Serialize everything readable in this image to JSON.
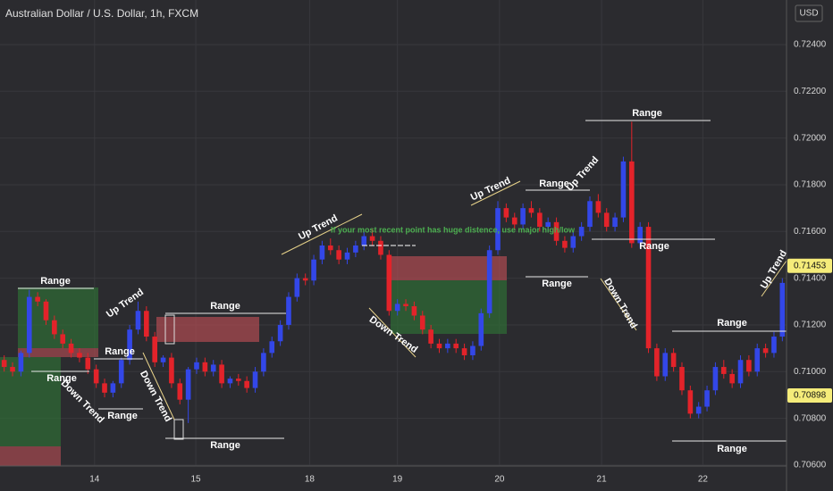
{
  "chart_data": {
    "type": "candlestick",
    "title": "Australian Dollar / U.S. Dollar, 1h, FXCM",
    "currency": "USD",
    "note": "If your most recent point has huge distence, use major high/low",
    "annotations": [
      "Range",
      "Up Trend",
      "Range",
      "Range",
      "Down Trend",
      "Range",
      "Down Trend",
      "Range",
      "Range",
      "Up Trend",
      "Down Trend",
      "Up Trend",
      "Range",
      "Up Trend",
      "Range",
      "Range",
      "Range",
      "Down Trend",
      "Range",
      "Range",
      "Up Trend"
    ],
    "up_color": "#3347e8",
    "down_color": "#e3232a",
    "ylim": [
      0.70596,
      0.72591
    ],
    "yticks": [
      {
        "value": 0.706,
        "label": "0.70600"
      },
      {
        "value": 0.708,
        "label": "0.70800"
      },
      {
        "value": 0.71,
        "label": "0.71000"
      },
      {
        "value": 0.712,
        "label": "0.71200"
      },
      {
        "value": 0.714,
        "label": "0.71400"
      },
      {
        "value": 0.716,
        "label": "0.71600"
      },
      {
        "value": 0.718,
        "label": "0.71800"
      },
      {
        "value": 0.72,
        "label": "0.72000"
      },
      {
        "value": 0.722,
        "label": "0.72200"
      },
      {
        "value": 0.724,
        "label": "0.72400"
      }
    ],
    "xlim": [
      -0.5,
      93.5
    ],
    "xticks": [
      {
        "value": 10.8,
        "label": "14"
      },
      {
        "value": 22.9,
        "label": "15"
      },
      {
        "value": 36.5,
        "label": "18"
      },
      {
        "value": 47.0,
        "label": "19"
      },
      {
        "value": 59.2,
        "label": "20"
      },
      {
        "value": 71.4,
        "label": "21"
      },
      {
        "value": 83.5,
        "label": "22"
      }
    ],
    "price_marks": [
      0.71453,
      0.70898
    ],
    "grid": true,
    "open": [
      0.7105,
      0.7102,
      0.71,
      0.7108,
      0.7132,
      0.713,
      0.7122,
      0.7116,
      0.7112,
      0.7108,
      0.7106,
      0.7101,
      0.7095,
      0.7091,
      0.7095,
      0.7105,
      0.7118,
      0.7126,
      0.7115,
      0.7104,
      0.7106,
      0.7095,
      0.7088,
      0.7101,
      0.7104,
      0.71,
      0.7103,
      0.7095,
      0.7097,
      0.7096,
      0.7093,
      0.71,
      0.7108,
      0.7113,
      0.712,
      0.7132,
      0.714,
      0.7139,
      0.7148,
      0.7154,
      0.7152,
      0.7148,
      0.7151,
      0.7154,
      0.7158,
      0.7156,
      0.715,
      0.7126,
      0.7129,
      0.7128,
      0.7124,
      0.7118,
      0.7112,
      0.711,
      0.7112,
      0.711,
      0.7107,
      0.7111,
      0.7125,
      0.7152,
      0.717,
      0.7166,
      0.7163,
      0.717,
      0.7168,
      0.7162,
      0.7164,
      0.7156,
      0.7153,
      0.7158,
      0.7162,
      0.7173,
      0.7168,
      0.7162,
      0.7166,
      0.719,
      0.7155,
      0.7162,
      0.711,
      0.7098,
      0.7108,
      0.7102,
      0.7092,
      0.7082,
      0.7085,
      0.7092,
      0.7102,
      0.7099,
      0.7095,
      0.7105,
      0.71,
      0.711,
      0.7108,
      0.7115
    ],
    "high": [
      0.7107,
      0.7104,
      0.7109,
      0.7135,
      0.7134,
      0.7131,
      0.7124,
      0.7118,
      0.7114,
      0.711,
      0.7108,
      0.7103,
      0.7097,
      0.7096,
      0.7106,
      0.712,
      0.713,
      0.7128,
      0.7117,
      0.7107,
      0.7108,
      0.7097,
      0.7102,
      0.7106,
      0.7106,
      0.7105,
      0.7105,
      0.7098,
      0.7099,
      0.7098,
      0.7102,
      0.711,
      0.7115,
      0.7122,
      0.7134,
      0.7142,
      0.7142,
      0.715,
      0.7156,
      0.7157,
      0.7154,
      0.7153,
      0.7156,
      0.716,
      0.7161,
      0.7158,
      0.7152,
      0.7131,
      0.7131,
      0.713,
      0.7126,
      0.712,
      0.7114,
      0.7114,
      0.7114,
      0.7112,
      0.7113,
      0.7127,
      0.7154,
      0.7173,
      0.7172,
      0.7168,
      0.7172,
      0.7173,
      0.717,
      0.7166,
      0.7166,
      0.7158,
      0.716,
      0.7164,
      0.7175,
      0.7176,
      0.717,
      0.7168,
      0.7192,
      0.7207,
      0.7164,
      0.7164,
      0.7112,
      0.711,
      0.711,
      0.7104,
      0.7094,
      0.7087,
      0.7094,
      0.7104,
      0.7105,
      0.7101,
      0.7107,
      0.7107,
      0.7112,
      0.7112,
      0.7117,
      0.714
    ],
    "low": [
      0.71,
      0.7098,
      0.7098,
      0.7106,
      0.7128,
      0.712,
      0.7114,
      0.711,
      0.7106,
      0.7104,
      0.7099,
      0.7093,
      0.7089,
      0.7089,
      0.7093,
      0.7103,
      0.7116,
      0.7113,
      0.7102,
      0.7102,
      0.7093,
      0.7086,
      0.7078,
      0.7099,
      0.7098,
      0.7098,
      0.7093,
      0.7093,
      0.7094,
      0.7091,
      0.7091,
      0.7098,
      0.7106,
      0.7111,
      0.7118,
      0.713,
      0.7137,
      0.7137,
      0.7146,
      0.715,
      0.7146,
      0.7146,
      0.7149,
      0.7152,
      0.7154,
      0.7148,
      0.7124,
      0.7124,
      0.7126,
      0.7122,
      0.7116,
      0.711,
      0.7108,
      0.7108,
      0.7108,
      0.7105,
      0.7105,
      0.7109,
      0.7123,
      0.715,
      0.7164,
      0.7161,
      0.7161,
      0.7166,
      0.716,
      0.716,
      0.7154,
      0.7151,
      0.7151,
      0.7156,
      0.716,
      0.7166,
      0.716,
      0.716,
      0.7164,
      0.7153,
      0.7153,
      0.7108,
      0.7096,
      0.7096,
      0.71,
      0.709,
      0.708,
      0.708,
      0.7083,
      0.709,
      0.7097,
      0.7093,
      0.7093,
      0.7098,
      0.7098,
      0.7106,
      0.7106,
      0.7113
    ],
    "close": [
      0.7102,
      0.71,
      0.7108,
      0.7132,
      0.713,
      0.7122,
      0.7116,
      0.7112,
      0.7108,
      0.7106,
      0.7101,
      0.7095,
      0.7091,
      0.7095,
      0.7105,
      0.7118,
      0.7126,
      0.7115,
      0.7104,
      0.7106,
      0.7095,
      0.7088,
      0.7101,
      0.7104,
      0.71,
      0.7103,
      0.7095,
      0.7097,
      0.7096,
      0.7093,
      0.71,
      0.7108,
      0.7113,
      0.712,
      0.7132,
      0.714,
      0.7139,
      0.7148,
      0.7154,
      0.7152,
      0.7148,
      0.7151,
      0.7154,
      0.7158,
      0.7156,
      0.715,
      0.7126,
      0.7129,
      0.7128,
      0.7124,
      0.7118,
      0.7112,
      0.711,
      0.7112,
      0.711,
      0.7107,
      0.7111,
      0.7125,
      0.7152,
      0.717,
      0.7166,
      0.7163,
      0.717,
      0.7168,
      0.7162,
      0.7164,
      0.7156,
      0.7153,
      0.7158,
      0.7162,
      0.7173,
      0.7168,
      0.7162,
      0.7166,
      0.719,
      0.7155,
      0.7162,
      0.711,
      0.7098,
      0.7108,
      0.7102,
      0.7092,
      0.7082,
      0.7085,
      0.7092,
      0.7102,
      0.7099,
      0.7095,
      0.7105,
      0.71,
      0.711,
      0.7108,
      0.7115,
      0.7138
    ]
  }
}
